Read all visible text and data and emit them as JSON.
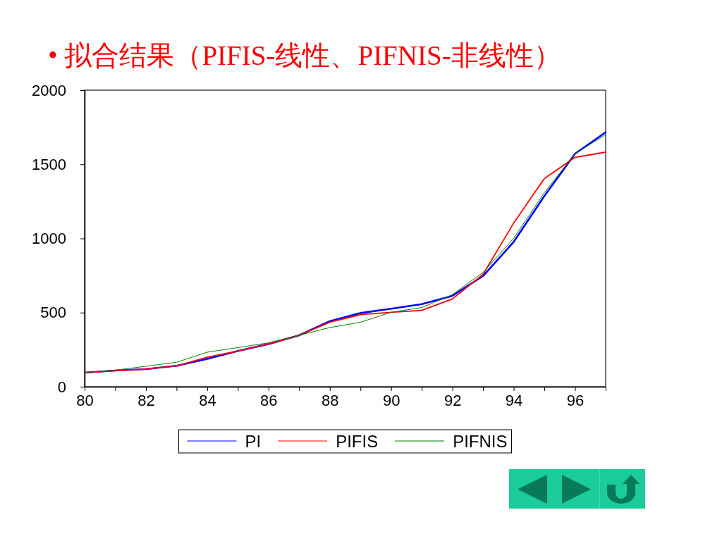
{
  "chart_data": {
    "type": "line",
    "title": "• 拟合结果（PIFIS-线性、PIFNIS-非线性）",
    "x": [
      80,
      81,
      82,
      83,
      84,
      85,
      86,
      87,
      88,
      89,
      90,
      91,
      92,
      93,
      94,
      95,
      96,
      97
    ],
    "series": [
      {
        "name": "PI",
        "color": "#0000ff",
        "values": [
          95,
          109,
          119,
          141,
          188,
          241,
          288,
          347,
          442,
          497,
          526,
          557,
          613,
          747,
          977,
          1286,
          1571,
          1716
        ]
      },
      {
        "name": "PIFIS",
        "color": "#ff0000",
        "values": [
          95,
          109,
          119,
          141,
          199,
          241,
          288,
          347,
          435,
          486,
          502,
          515,
          592,
          758,
          1104,
          1404,
          1547,
          1582
        ]
      },
      {
        "name": "PIFNIS",
        "color": "#008000",
        "values": [
          95,
          112,
          138,
          165,
          233,
          264,
          296,
          347,
          399,
          435,
          502,
          534,
          621,
          771,
          1001,
          1309,
          1571,
          1700
        ]
      }
    ],
    "xlim": [
      80,
      97
    ],
    "ylim": [
      0,
      2000
    ],
    "xticks": [
      80,
      {
        "value": 81,
        "label": null
      },
      82,
      {
        "value": 83,
        "label": null
      },
      84,
      {
        "value": 85,
        "label": null
      },
      86,
      {
        "value": 87,
        "label": null
      },
      88,
      {
        "value": 89,
        "label": null
      },
      90,
      {
        "value": 91,
        "label": null
      },
      92,
      {
        "value": 93,
        "label": null
      },
      94,
      {
        "value": 95,
        "label": null
      },
      96,
      {
        "value": 97,
        "label": null
      }
    ],
    "yticks": [
      0,
      500,
      1000,
      1500,
      2000
    ],
    "legend": "bottom",
    "line_style": "solid"
  }
}
